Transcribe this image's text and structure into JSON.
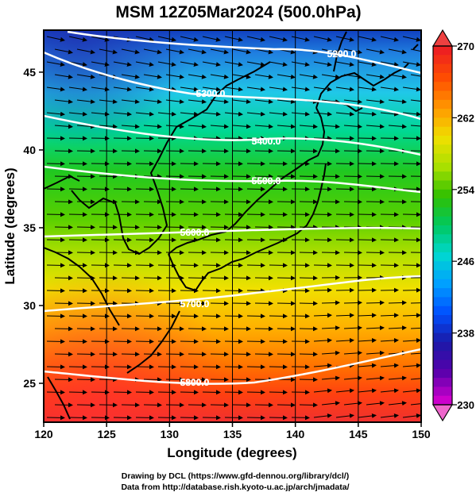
{
  "title": "MSM 12Z05Mar2024 (500.0hPa)",
  "x_axis": {
    "label": "Longitude (degrees)",
    "ticks": [
      "120",
      "125",
      "130",
      "135",
      "140",
      "145",
      "150"
    ],
    "range": [
      120,
      150
    ]
  },
  "y_axis": {
    "label": "Latitude  (degrees)",
    "ticks": [
      "25",
      "30",
      "35",
      "40",
      "45"
    ],
    "range": [
      22.5,
      47.7
    ]
  },
  "colorbar": {
    "ticks": [
      "270",
      "262",
      "254",
      "246",
      "238",
      "230"
    ],
    "range": [
      230,
      270
    ],
    "colors": [
      "#cc00cc",
      "#5500aa",
      "#1a1aa8",
      "#0050ff",
      "#00a0ff",
      "#00d8d0",
      "#00c860",
      "#30c000",
      "#a8e000",
      "#f0e000",
      "#ff9a00",
      "#ff5000",
      "#ee2020"
    ]
  },
  "contours": [
    {
      "label": "5200.0"
    },
    {
      "label": "5300.0"
    },
    {
      "label": "5400.0"
    },
    {
      "label": "5500.0"
    },
    {
      "label": "5600.0"
    },
    {
      "label": "5700.0"
    },
    {
      "label": "5800.0"
    }
  ],
  "footer": {
    "line1": "Drawing by DCL (https://www.gfd-dennou.org/library/dcl/)",
    "line2": "Data from http://database.rish.kyoto-u.ac.jp/arch/jmadata/"
  }
}
